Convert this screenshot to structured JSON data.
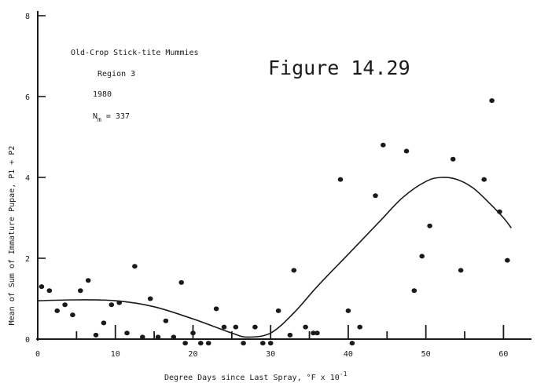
{
  "chart_data": {
    "type": "scatter",
    "figure_label": "Figure 14.29",
    "annotations": {
      "line1": "Old-Crop Stick-tite Mummies",
      "line2": "Region 3",
      "line3": "1980",
      "line4_main": "N",
      "line4_sub": "m",
      "line4_rest": " = 337"
    },
    "xlabel": "Degree Days since Last Spray, °F x 10",
    "xlabel_sup": "-1",
    "ylabel": "Mean of Sum of Immature Pupae, P1 + P2",
    "xlim": [
      0,
      63
    ],
    "ylim": [
      0,
      8
    ],
    "xticks": [
      0,
      10,
      20,
      30,
      40,
      50,
      60
    ],
    "yticks": [
      0,
      2,
      4,
      6,
      8
    ],
    "grid": false,
    "colors": {
      "ink": "#1a1a1a",
      "background": "#ffffff"
    },
    "points": [
      [
        0.5,
        1.3
      ],
      [
        1.5,
        1.2
      ],
      [
        2.5,
        0.7
      ],
      [
        3.5,
        0.85
      ],
      [
        4.5,
        0.6
      ],
      [
        5.5,
        1.2
      ],
      [
        6.5,
        1.45
      ],
      [
        7.5,
        0.1
      ],
      [
        8.5,
        0.4
      ],
      [
        9.5,
        0.85
      ],
      [
        10.5,
        0.9
      ],
      [
        11.5,
        0.15
      ],
      [
        12.5,
        1.8
      ],
      [
        13.5,
        0.05
      ],
      [
        14.5,
        1.0
      ],
      [
        15.5,
        0.05
      ],
      [
        16.5,
        0.45
      ],
      [
        17.5,
        0.05
      ],
      [
        18.5,
        1.4
      ],
      [
        19.0,
        -0.1
      ],
      [
        20.0,
        0.15
      ],
      [
        21.0,
        -0.1
      ],
      [
        22.0,
        -0.1
      ],
      [
        23.0,
        0.75
      ],
      [
        24.0,
        0.3
      ],
      [
        25.5,
        0.3
      ],
      [
        26.5,
        -0.1
      ],
      [
        28.0,
        0.3
      ],
      [
        29.0,
        -0.1
      ],
      [
        30.0,
        -0.1
      ],
      [
        31.0,
        0.7
      ],
      [
        32.5,
        0.1
      ],
      [
        33.0,
        1.7
      ],
      [
        34.5,
        0.3
      ],
      [
        35.5,
        0.15
      ],
      [
        36.0,
        0.15
      ],
      [
        39.0,
        3.95
      ],
      [
        40.0,
        0.7
      ],
      [
        40.5,
        -0.1
      ],
      [
        41.5,
        0.3
      ],
      [
        43.5,
        3.55
      ],
      [
        44.5,
        4.8
      ],
      [
        47.5,
        4.65
      ],
      [
        48.5,
        1.2
      ],
      [
        49.5,
        2.05
      ],
      [
        50.5,
        2.8
      ],
      [
        53.5,
        4.45
      ],
      [
        54.5,
        1.7
      ],
      [
        57.5,
        3.95
      ],
      [
        58.5,
        5.9
      ],
      [
        59.5,
        3.15
      ],
      [
        60.5,
        1.95
      ]
    ],
    "fitted_curve": [
      [
        0,
        0.95
      ],
      [
        5,
        0.97
      ],
      [
        10,
        0.95
      ],
      [
        15,
        0.8
      ],
      [
        20,
        0.5
      ],
      [
        25,
        0.15
      ],
      [
        27,
        0.05
      ],
      [
        30,
        0.15
      ],
      [
        33,
        0.65
      ],
      [
        36,
        1.3
      ],
      [
        40,
        2.1
      ],
      [
        44,
        2.9
      ],
      [
        47,
        3.5
      ],
      [
        50,
        3.9
      ],
      [
        52,
        4.0
      ],
      [
        54,
        3.95
      ],
      [
        56,
        3.75
      ],
      [
        58,
        3.4
      ],
      [
        60,
        3.0
      ],
      [
        61,
        2.75
      ]
    ]
  }
}
